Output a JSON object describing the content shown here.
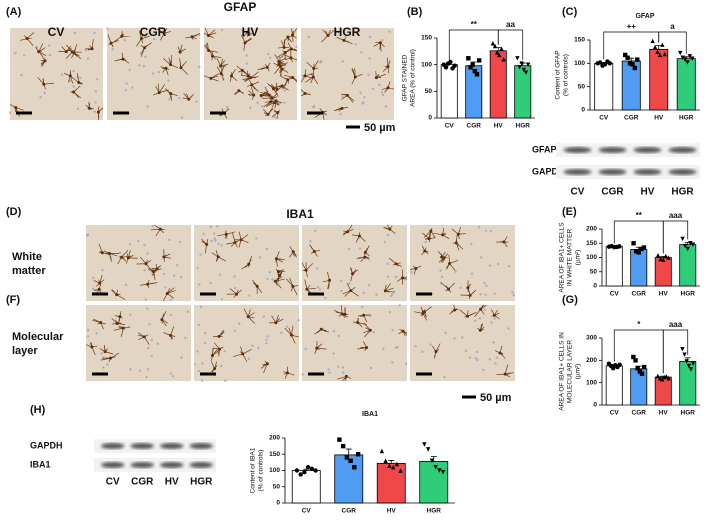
{
  "panels": {
    "A": {
      "label": "(A)",
      "title": "GFAP",
      "images": [
        "CV",
        "CGR",
        "HV",
        "HGR"
      ],
      "scale": "50 µm"
    },
    "D": {
      "label": "(D)",
      "title": "IBA1",
      "rows": [
        [
          "White",
          "matter"
        ],
        [
          "Molecular",
          "layer"
        ]
      ],
      "scale": "50 µm"
    },
    "F": {
      "label": "(F)"
    }
  },
  "blots": [
    {
      "rows": [
        "GFAP",
        "GAPDH"
      ],
      "lanes": [
        "CV",
        "CGR",
        "HV",
        "HGR"
      ]
    },
    {
      "rows": [
        "GAPDH",
        "IBA1"
      ],
      "lanes": [
        "CV",
        "CGR",
        "HV",
        "HGR"
      ]
    }
  ],
  "chart_data": [
    {
      "type": "bar",
      "label": "(B)",
      "ylabel": [
        "GFAP STAINED",
        "AREA (% of control)"
      ],
      "categories": [
        "CV",
        "CGR",
        "HV",
        "HGR"
      ],
      "colors": [
        "#ffffff",
        "#4f9cf2",
        "#f04848",
        "#2fcc7a"
      ],
      "values": [
        100,
        98,
        126,
        98
      ],
      "errors": [
        3,
        7,
        6,
        5
      ],
      "points": [
        [
          100,
          95,
          102,
          105,
          93,
          98
        ],
        [
          112,
          95,
          100,
          88,
          82,
          108
        ],
        [
          140,
          135,
          123,
          118,
          130,
          110
        ],
        [
          112,
          95,
          102,
          90,
          85,
          100
        ]
      ],
      "ylim": [
        0,
        150
      ],
      "yticks": [
        0,
        50,
        100,
        150
      ],
      "significance": [
        {
          "from": "CV",
          "to": "HV",
          "label": "**"
        },
        {
          "from": "HV",
          "to": "HGR",
          "label": "aa"
        }
      ]
    },
    {
      "type": "bar",
      "label": "(C)",
      "title": "GFAP",
      "ylabel": [
        "Content of GFAP",
        "(% of controls)"
      ],
      "categories": [
        "CV",
        "CGR",
        "HV",
        "HGR"
      ],
      "colors": [
        "#ffffff",
        "#4f9cf2",
        "#f04848",
        "#2fcc7a"
      ],
      "values": [
        100,
        105,
        130,
        110
      ],
      "errors": [
        2,
        6,
        8,
        4
      ],
      "points": [
        [
          100,
          102,
          95,
          98,
          104,
          100
        ],
        [
          118,
          112,
          100,
          98,
          90,
          108
        ],
        [
          148,
          135,
          125,
          118,
          140,
          120
        ],
        [
          122,
          112,
          108,
          102,
          115,
          110
        ]
      ],
      "ylim": [
        0,
        150
      ],
      "yticks": [
        0,
        50,
        100,
        150
      ],
      "significance": [
        {
          "from": "CV",
          "to": "HV",
          "label": "++"
        },
        {
          "from": "HV",
          "to": "HGR",
          "label": "a"
        }
      ]
    },
    {
      "type": "bar",
      "label": "(E)",
      "ylabel": [
        "AREA OF IBA1+ CELLS",
        "IN WHITE MATTER",
        "(µm²)"
      ],
      "categories": [
        "CV",
        "CGR",
        "HV",
        "HGR"
      ],
      "colors": [
        "#ffffff",
        "#4f9cf2",
        "#f04848",
        "#2fcc7a"
      ],
      "values": [
        138,
        128,
        100,
        145
      ],
      "errors": [
        1,
        8,
        4,
        8
      ],
      "points": [
        [
          138,
          140,
          136,
          137,
          139
        ],
        [
          150,
          122,
          118,
          130,
          135
        ],
        [
          108,
          95,
          92,
          105,
          100
        ],
        [
          165,
          140,
          130,
          150,
          145
        ]
      ],
      "ylim": [
        0,
        200
      ],
      "yticks": [
        0,
        50,
        100,
        150,
        200
      ],
      "significance": [
        {
          "from": "CV",
          "to": "HV",
          "label": "**"
        },
        {
          "from": "HV",
          "to": "HGR",
          "label": "aaa"
        }
      ]
    },
    {
      "type": "bar",
      "label": "(G)",
      "ylabel": [
        "AREA OF IBA1+ CELLS IN",
        "MOLECULAR LAYER",
        "(µm²)"
      ],
      "categories": [
        "CV",
        "CGR",
        "HV",
        "HGR"
      ],
      "colors": [
        "#ffffff",
        "#4f9cf2",
        "#f04848",
        "#2fcc7a"
      ],
      "values": [
        175,
        162,
        125,
        195
      ],
      "errors": [
        6,
        12,
        4,
        16
      ],
      "points": [
        [
          185,
          175,
          165,
          178,
          170,
          180
        ],
        [
          215,
          200,
          165,
          150,
          140,
          170
        ],
        [
          130,
          120,
          115,
          125,
          128,
          120
        ],
        [
          250,
          225,
          195,
          175,
          160,
          185
        ]
      ],
      "ylim": [
        0,
        300
      ],
      "yticks": [
        0,
        100,
        200,
        300
      ],
      "significance": [
        {
          "from": "CV",
          "to": "HV",
          "label": "*"
        },
        {
          "from": "HV",
          "to": "HGR",
          "label": "aaa"
        }
      ]
    },
    {
      "type": "bar",
      "label": "(H)",
      "title": "IBA1",
      "ylabel": [
        "Content of IBA1",
        "(% of controls)"
      ],
      "categories": [
        "CV",
        "CGR",
        "HV",
        "HGR"
      ],
      "colors": [
        "#ffffff",
        "#4f9cf2",
        "#f04848",
        "#2fcc7a"
      ],
      "values": [
        100,
        148,
        122,
        128
      ],
      "errors": [
        4,
        18,
        9,
        15
      ],
      "points": [
        [
          100,
          88,
          95,
          110,
          105,
          100
        ],
        [
          195,
          175,
          140,
          130,
          110,
          150
        ],
        [
          160,
          130,
          115,
          110,
          120,
          100
        ],
        [
          180,
          165,
          130,
          110,
          100,
          95
        ]
      ],
      "ylim": [
        0,
        200
      ],
      "yticks": [
        0,
        50,
        100,
        150,
        200
      ],
      "significance": []
    }
  ]
}
